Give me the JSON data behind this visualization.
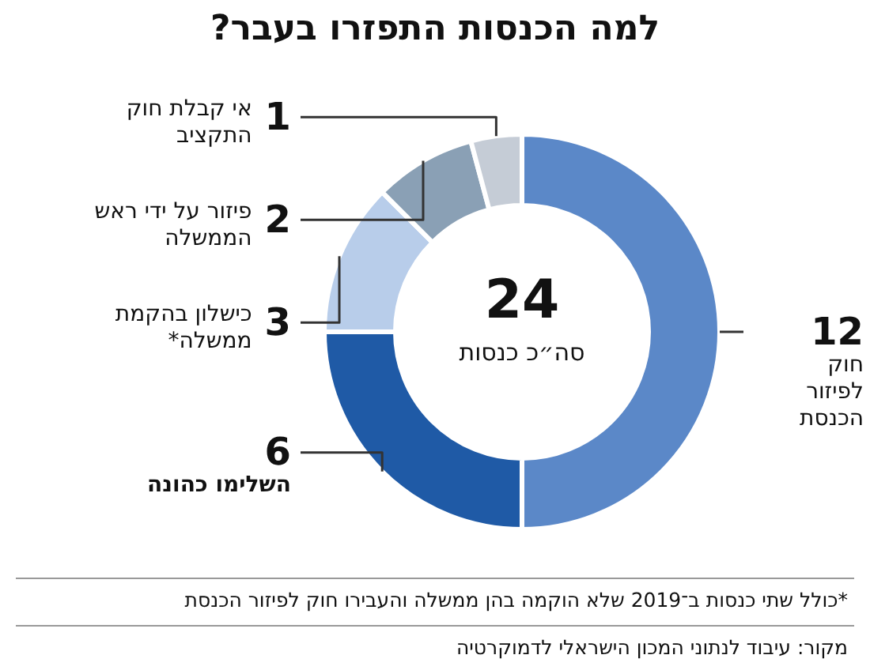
{
  "chart_data": {
    "type": "donut",
    "title": "למה הכנסות התפזרו בעבר?",
    "categories": [
      "חוק לפיזור הכנסת",
      "השלימו כהונה",
      "כישלון בהקמת ממשלה*",
      "פיזור על ידי ראש הממשלה",
      "אי קבלת חוק התקציב"
    ],
    "values": [
      12,
      6,
      3,
      2,
      1
    ],
    "colors": [
      "#5b88c8",
      "#1f5aa6",
      "#b8cdea",
      "#8aa0b5",
      "#c5ccd6"
    ],
    "data_labels": true,
    "annotations": [
      "24",
      "סה״כ כנסות",
      "*כולל שתי כנסות ב־2019 שלא הוקמה בהן ממשלה והעבירו חוק לפיזור הכנסת",
      "מקור: עיבוד לנתוני המכון הישראלי לדמוקרטיה"
    ]
  }
}
